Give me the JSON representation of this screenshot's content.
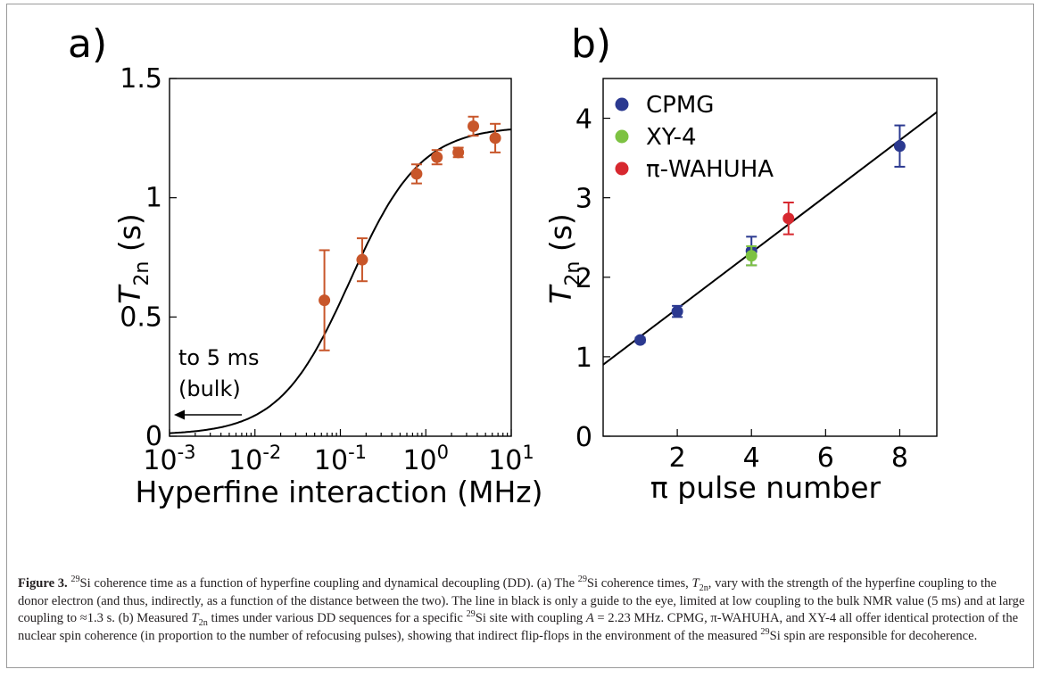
{
  "figure_label": "Figure 3.",
  "caption": {
    "p1": "Si coherence time as a function of hyperfine coupling and dynamical decoupling (DD). (a) The ",
    "p2": "Si coherence times, ",
    "p3": ", vary with the strength of the hyperfine coupling to the donor electron (and thus, indirectly, as a function of the distance between the two). The line in black is only a guide to the eye, limited at low coupling to the bulk NMR value (5 ms) and at large coupling to ≈1.3 s. (b) Measured ",
    "p4": " times under various DD sequences for a specific ",
    "p5": "Si site with coupling ",
    "p6": " = 2.23 MHz. CPMG, π-WAHUHA, and XY-4 all offer identical protection of the nuclear spin coherence (in proportion to the number of refocusing pulses), showing that indirect flip-flops in the environment of the measured ",
    "p7": "Si spin are responsible for decoherence.",
    "iso": "29",
    "T": "T",
    "sub2n": "2n",
    "A": "A"
  },
  "chart_data": [
    {
      "panel_label": "a)",
      "type": "scatter",
      "xlabel": "Hyperfine interaction (MHz)",
      "ylabel_main": "T",
      "ylabel_sub": "2n",
      "ylabel_unit": " (s)",
      "xscale": "log",
      "xlim": [
        0.001,
        10
      ],
      "ylim": [
        0,
        1.5
      ],
      "xticks": [
        0.001,
        0.01,
        0.1,
        1,
        10
      ],
      "xtick_labels": [
        {
          "base": "10",
          "exp": "-3"
        },
        {
          "base": "10",
          "exp": "-2"
        },
        {
          "base": "10",
          "exp": "-1"
        },
        {
          "base": "10",
          "exp": "0"
        },
        {
          "base": "10",
          "exp": "1"
        }
      ],
      "yticks": [
        0,
        0.5,
        1,
        1.5
      ],
      "ytick_labels": [
        "0",
        "0.5",
        "1",
        "1.5"
      ],
      "marker_color": "#c8562a",
      "points": [
        {
          "x": 0.065,
          "y": 0.57,
          "err": 0.21
        },
        {
          "x": 0.18,
          "y": 0.74,
          "err": 0.09
        },
        {
          "x": 0.78,
          "y": 1.1,
          "err": 0.04
        },
        {
          "x": 1.35,
          "y": 1.17,
          "err": 0.03
        },
        {
          "x": 2.4,
          "y": 1.19,
          "err": 0.02
        },
        {
          "x": 3.6,
          "y": 1.3,
          "err": 0.04
        },
        {
          "x": 6.5,
          "y": 1.25,
          "err": 0.06
        }
      ],
      "guide_curve": {
        "y_low": 0.005,
        "y_high": 1.3,
        "x_mid": 0.13,
        "color": "#000000"
      },
      "annotation": {
        "line1": "to 5 ms",
        "line2": "(bulk)",
        "arrow": "left"
      }
    },
    {
      "panel_label": "b)",
      "type": "scatter",
      "xlabel": "π pulse number",
      "ylabel_main": "T",
      "ylabel_sub": "2n",
      "ylabel_unit": " (s)",
      "xlim": [
        0,
        9
      ],
      "ylim": [
        0,
        4.5
      ],
      "xticks": [
        2,
        4,
        6,
        8
      ],
      "yticks": [
        0,
        1,
        2,
        3,
        4
      ],
      "legend_position": "top-left",
      "series": [
        {
          "name": "CPMG",
          "color": "#2b3990",
          "points": [
            {
              "x": 1,
              "y": 1.21,
              "err": 0.03
            },
            {
              "x": 2,
              "y": 1.57,
              "err": 0.07
            },
            {
              "x": 4,
              "y": 2.33,
              "err": 0.18
            },
            {
              "x": 8,
              "y": 3.65,
              "err": 0.26
            }
          ]
        },
        {
          "name": "XY-4",
          "color": "#7dc242",
          "points": [
            {
              "x": 4,
              "y": 2.27,
              "err": 0.12
            }
          ]
        },
        {
          "name": "π-WAHUHA",
          "color": "#d7282f",
          "points": [
            {
              "x": 5,
              "y": 2.74,
              "err": 0.2
            }
          ]
        }
      ],
      "fit_line": {
        "slope": 0.353,
        "intercept": 0.9,
        "color": "#000000"
      }
    }
  ]
}
